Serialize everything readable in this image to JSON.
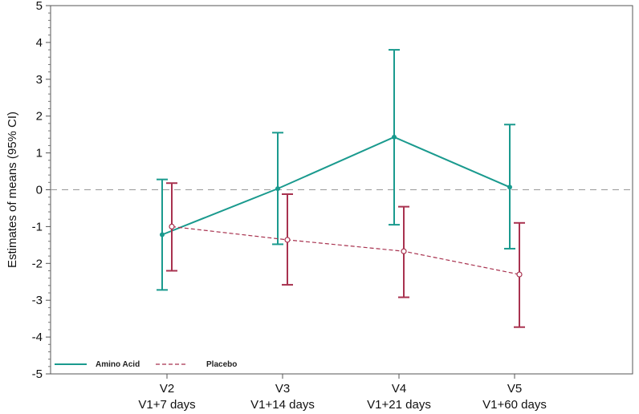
{
  "chart_data": {
    "type": "line",
    "title": "",
    "xlabel": "",
    "ylabel": "Estimates of means (95% CI)",
    "ylim": [
      -5,
      5
    ],
    "yticks": [
      5,
      4,
      3,
      2,
      1,
      0,
      -1,
      -2,
      -3,
      -4,
      -5
    ],
    "categories": [
      {
        "line1": "V2",
        "line2": "V1+7 days"
      },
      {
        "line1": "V3",
        "line2": "V1+14 days"
      },
      {
        "line1": "V4",
        "line2": "V1+21 days"
      },
      {
        "line1": "V5",
        "line2": "V1+60 days"
      }
    ],
    "reference_line": 0,
    "series": [
      {
        "name": "Amino Acid",
        "color": "#1a9a8e",
        "style": "solid",
        "values": [
          -1.22,
          0.03,
          1.43,
          0.07
        ],
        "lower": [
          -2.72,
          -1.48,
          -0.95,
          -1.6
        ],
        "upper": [
          0.28,
          1.55,
          3.8,
          1.77
        ]
      },
      {
        "name": "Placebo",
        "color": "#a8324f",
        "style": "dashed",
        "values": [
          -1.0,
          -1.36,
          -1.67,
          -2.3
        ],
        "lower": [
          -2.2,
          -2.58,
          -2.92,
          -3.73
        ],
        "upper": [
          0.18,
          -0.12,
          -0.46,
          -0.9
        ]
      }
    ],
    "legend": {
      "position": "bottom-left",
      "entries": [
        "Amino Acid",
        "Placebo"
      ]
    }
  }
}
